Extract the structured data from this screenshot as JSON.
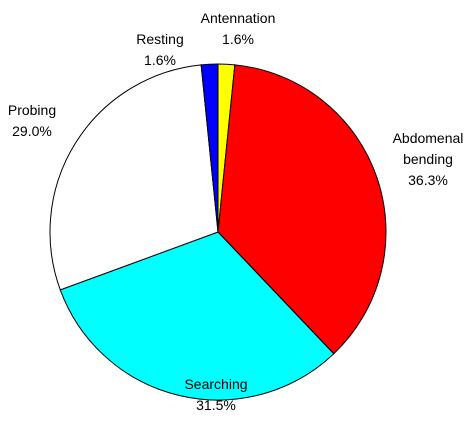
{
  "chart_data": {
    "type": "pie",
    "categories": [
      "Antennation",
      "Abdomenal bending",
      "Searching",
      "Probing",
      "Resting"
    ],
    "values": [
      1.6,
      36.3,
      31.5,
      29.0,
      1.6
    ],
    "value_labels": [
      "1.6%",
      "36.3%",
      "31.5%",
      "29.0%",
      "1.6%"
    ],
    "colors": [
      "#ffff00",
      "#ff0000",
      "#00ffff",
      "#ffffff",
      "#0000ff"
    ]
  }
}
